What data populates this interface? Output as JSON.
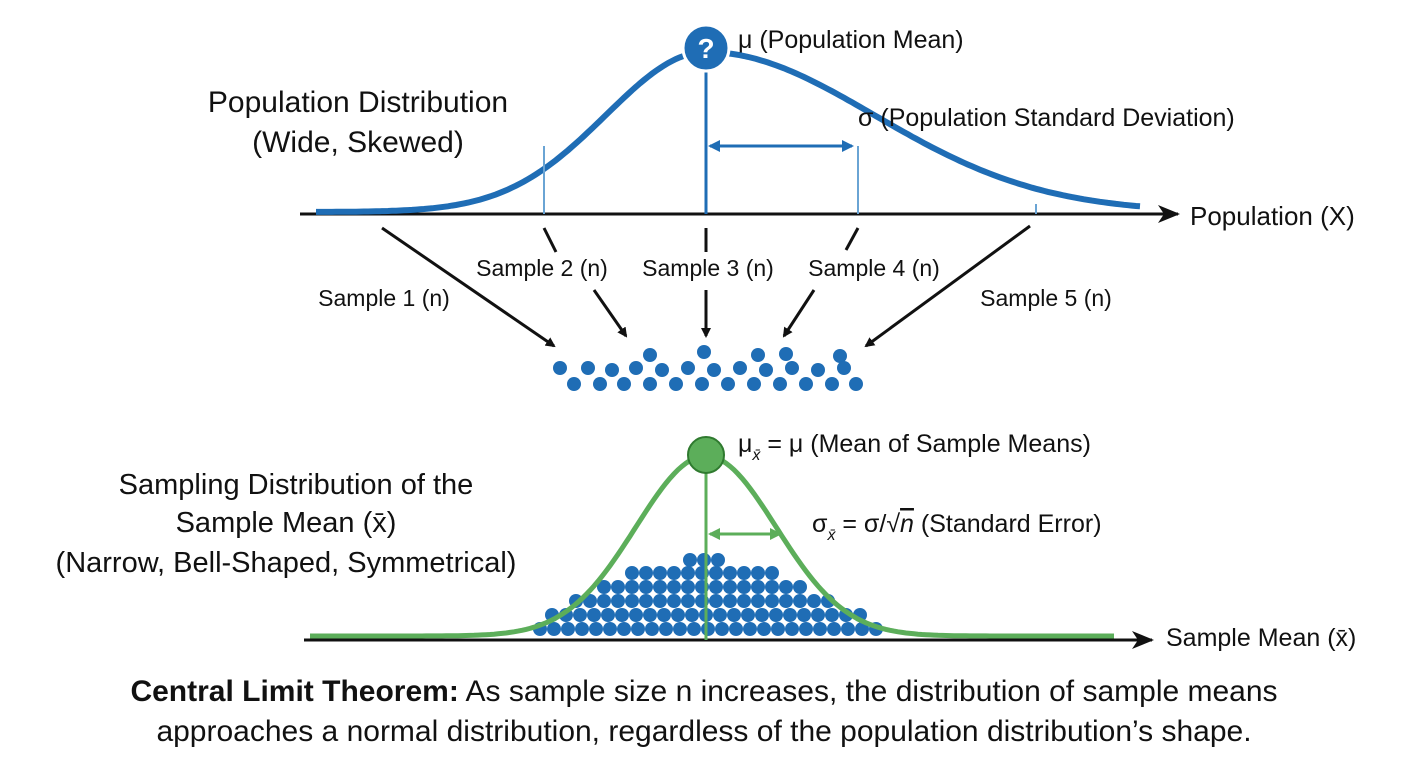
{
  "population": {
    "title_line1": "Population Distribution",
    "title_line2": "(Wide, Skewed)",
    "mean_symbol": "?",
    "mean_label": "μ (Population Mean)",
    "sd_label": "σ (Population Standard Deviation)",
    "axis_label": "Population (X)",
    "curve_color": "#1f6db5"
  },
  "samples": [
    {
      "label": "Sample 1 (n)"
    },
    {
      "label": "Sample 2 (n)"
    },
    {
      "label": "Sample 3 (n)"
    },
    {
      "label": "Sample 4 (n)"
    },
    {
      "label": "Sample 5 (n)"
    }
  ],
  "sampling": {
    "title_line1": "Sampling Distribution of the",
    "title_line2": "Sample Mean (x̄)",
    "title_line3": "(Narrow, Bell-Shaped, Symmetrical)",
    "mean_label_sub": "x̄",
    "mean_label_rest": " = μ (Mean of Sample Means)",
    "se_label_sub": "x̄",
    "se_label_rest1": " = σ/",
    "se_label_n": "n",
    "se_label_rest2": " (Standard Error)",
    "axis_label": "Sample Mean (x̄)",
    "curve_color": "#5cae5a",
    "dot_color": "#1f6db5"
  },
  "caption": {
    "bold": "Central Limit Theorem:",
    "line1_rest": " As sample size n increases, the distribution of sample means",
    "line2": "approaches a normal distribution, regardless of the population distribution’s shape."
  }
}
